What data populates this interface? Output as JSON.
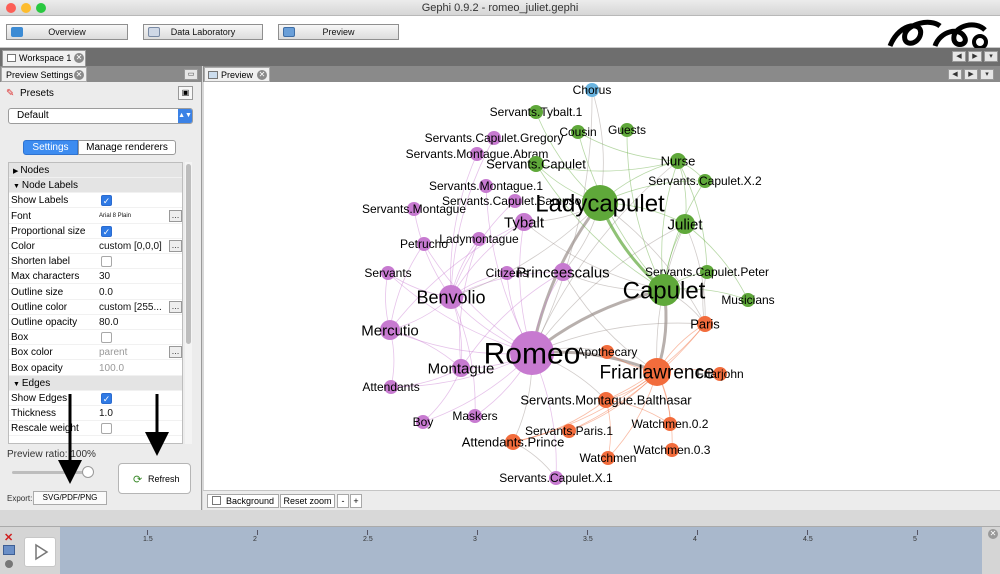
{
  "window": {
    "title": "Gephi 0.9.2 - romeo_juliet.gephi"
  },
  "toolbar": {
    "overview_label": "Overview",
    "data_lab_label": "Data Laboratory",
    "preview_label": "Preview"
  },
  "workspace": {
    "tab_label": "Workspace 1"
  },
  "preview_settings": {
    "panel_title": "Preview Settings",
    "presets_label": "Presets",
    "preset_value": "Default",
    "tab_settings": "Settings",
    "tab_renderers": "Manage renderers",
    "rows": [
      {
        "type": "cat",
        "name": "Nodes",
        "expanded": false
      },
      {
        "type": "cat",
        "name": "Node Labels",
        "expanded": true
      },
      {
        "type": "check",
        "name": "Show Labels",
        "checked": true
      },
      {
        "type": "val",
        "name": "Font",
        "value": "Arial 8 Plain",
        "dots": true,
        "small": true
      },
      {
        "type": "check",
        "name": "Proportional size",
        "checked": true
      },
      {
        "type": "val",
        "name": "Color",
        "value": "custom [0,0,0]",
        "dots": true
      },
      {
        "type": "check",
        "name": "Shorten label",
        "checked": false
      },
      {
        "type": "val",
        "name": "Max characters",
        "value": "30"
      },
      {
        "type": "val",
        "name": "Outline size",
        "value": "0.0"
      },
      {
        "type": "val",
        "name": "Outline color",
        "value": "custom [255...",
        "dots": true
      },
      {
        "type": "val",
        "name": "Outline opacity",
        "value": "80.0"
      },
      {
        "type": "check",
        "name": "Box",
        "checked": false
      },
      {
        "type": "val",
        "name": "Box color",
        "value": "parent",
        "dots": true,
        "dim": true
      },
      {
        "type": "val",
        "name": "Box opacity",
        "value": "100.0",
        "dim": true
      },
      {
        "type": "cat",
        "name": "Edges",
        "expanded": true
      },
      {
        "type": "check",
        "name": "Show Edges",
        "checked": true
      },
      {
        "type": "val",
        "name": "Thickness",
        "value": "1.0"
      },
      {
        "type": "check",
        "name": "Rescale weight",
        "checked": false
      }
    ],
    "ratio_label": "Preview ratio: 100%",
    "refresh_label": "Refresh",
    "export_label": "Export:",
    "export_button": "SVG/PDF/PNG"
  },
  "preview": {
    "tab_label": "Preview",
    "background_label": "Background",
    "reset_zoom_label": "Reset zoom",
    "minus_label": "-",
    "plus_label": "+"
  },
  "colors": {
    "green": "#5fa83a",
    "purple": "#c77ad0",
    "orange": "#f26c3c",
    "blue": "#6ab4e0"
  },
  "graph": {
    "nodes": [
      {
        "label": "Chorus",
        "color": "blue",
        "r": 7,
        "fs": 12
      },
      {
        "label": "Servants.Tybalt.1",
        "color": "green",
        "r": 7,
        "fs": 12
      },
      {
        "label": "Cousin",
        "color": "green",
        "r": 7,
        "fs": 12
      },
      {
        "label": "Guests",
        "color": "green",
        "r": 7,
        "fs": 12
      },
      {
        "label": "Servants.Capulet.Gregory",
        "color": "purple",
        "r": 7,
        "fs": 12
      },
      {
        "label": "Servants.Montague.Abram",
        "color": "purple",
        "r": 7,
        "fs": 12
      },
      {
        "label": "Servants.Capulet",
        "color": "green",
        "r": 8,
        "fs": 13
      },
      {
        "label": "Nurse",
        "color": "green",
        "r": 8,
        "fs": 13
      },
      {
        "label": "Servants.Capulet.X.2",
        "color": "green",
        "r": 7,
        "fs": 12
      },
      {
        "label": "Servants.Montague.1",
        "color": "purple",
        "r": 7,
        "fs": 12
      },
      {
        "label": "Servants.Capulet.Sampson",
        "color": "purple",
        "r": 7,
        "fs": 12
      },
      {
        "label": "Servants.Montague",
        "color": "purple",
        "r": 7,
        "fs": 12
      },
      {
        "label": "Ladycapulet",
        "color": "green",
        "r": 18,
        "fs": 24
      },
      {
        "label": "Tybalt",
        "color": "purple",
        "r": 9,
        "fs": 15
      },
      {
        "label": "Juliet",
        "color": "green",
        "r": 10,
        "fs": 15
      },
      {
        "label": "Ladymontague",
        "color": "purple",
        "r": 7,
        "fs": 12
      },
      {
        "label": "Petrucho",
        "color": "purple",
        "r": 7,
        "fs": 12
      },
      {
        "label": "Princeescalus",
        "color": "purple",
        "r": 9,
        "fs": 15
      },
      {
        "label": "Servants",
        "color": "purple",
        "r": 7,
        "fs": 12
      },
      {
        "label": "Citizens",
        "color": "purple",
        "r": 7,
        "fs": 12
      },
      {
        "label": "Servants.Capulet.Peter",
        "color": "green",
        "r": 7,
        "fs": 12
      },
      {
        "label": "Capulet",
        "color": "green",
        "r": 16,
        "fs": 24
      },
      {
        "label": "Benvolio",
        "color": "purple",
        "r": 12,
        "fs": 18
      },
      {
        "label": "Musicians",
        "color": "green",
        "r": 7,
        "fs": 12
      },
      {
        "label": "Mercutio",
        "color": "purple",
        "r": 10,
        "fs": 15
      },
      {
        "label": "Paris",
        "color": "orange",
        "r": 8,
        "fs": 13
      },
      {
        "label": "Romeo",
        "color": "purple",
        "r": 22,
        "fs": 30
      },
      {
        "label": "Apothecary",
        "color": "orange",
        "r": 7,
        "fs": 12
      },
      {
        "label": "Friarlawrence",
        "color": "orange",
        "r": 14,
        "fs": 19
      },
      {
        "label": "Friarjohn",
        "color": "orange",
        "r": 7,
        "fs": 12
      },
      {
        "label": "Montague",
        "color": "purple",
        "r": 9,
        "fs": 15
      },
      {
        "label": "Attendants",
        "color": "purple",
        "r": 7,
        "fs": 12
      },
      {
        "label": "Servants.Montague.Balthasar",
        "color": "orange",
        "r": 8,
        "fs": 13
      },
      {
        "label": "Maskers",
        "color": "purple",
        "r": 7,
        "fs": 12
      },
      {
        "label": "Boy",
        "color": "purple",
        "r": 7,
        "fs": 12
      },
      {
        "label": "Attendants.Prince",
        "color": "orange",
        "r": 8,
        "fs": 13
      },
      {
        "label": "Servants.Paris.1",
        "color": "orange",
        "r": 7,
        "fs": 12
      },
      {
        "label": "Watchmen.0.2",
        "color": "orange",
        "r": 7,
        "fs": 12
      },
      {
        "label": "Watchmen",
        "color": "orange",
        "r": 7,
        "fs": 12
      },
      {
        "label": "Watchmen.0.3",
        "color": "orange",
        "r": 7,
        "fs": 12
      },
      {
        "label": "Servants.Capulet.X.1",
        "color": "purple",
        "r": 7,
        "fs": 12
      }
    ]
  },
  "timeline": {
    "ticks": [
      "1.5",
      "2",
      "2.5",
      "3",
      "3.5",
      "4",
      "4.5",
      "5"
    ]
  }
}
